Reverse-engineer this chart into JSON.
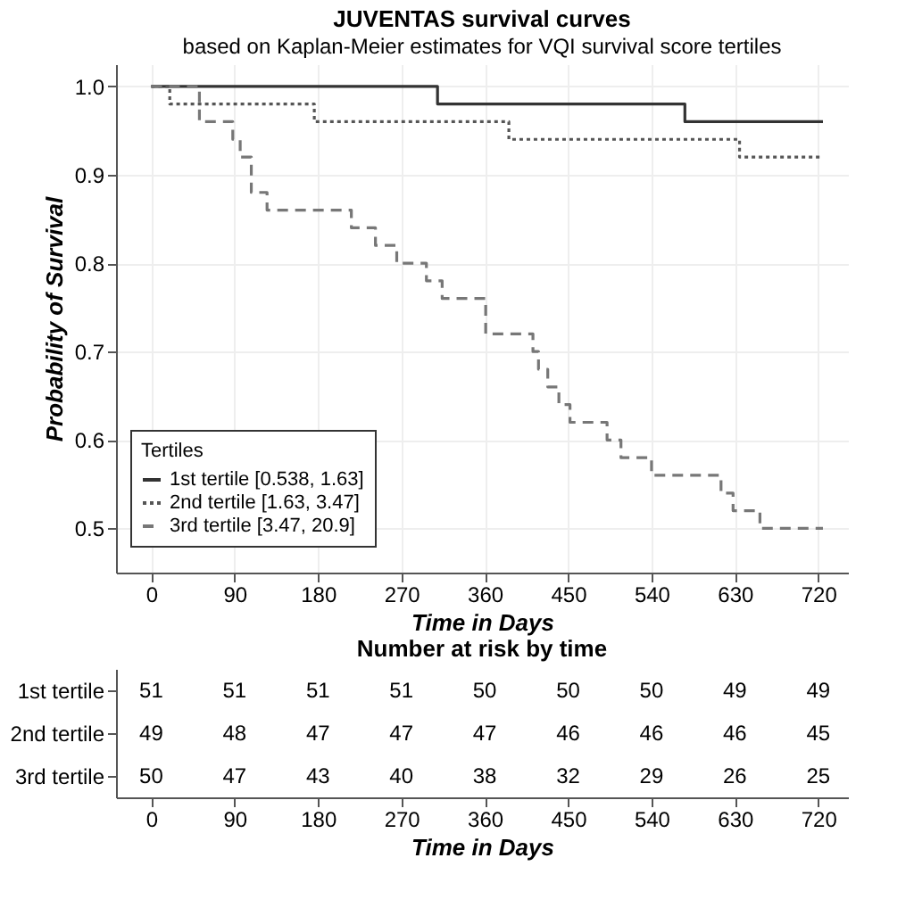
{
  "chart_data": [
    {
      "type": "step",
      "title": "JUVENTAS survival curves",
      "subtitle": "based on Kaplan-Meier estimates for VQI survival score tertiles",
      "xlabel": "Time in Days",
      "ylabel": "Probability of Survival",
      "legend_title": "Tertiles",
      "legend": "bottom left",
      "grid": true,
      "xlim": [
        -38,
        752
      ],
      "xticks": [
        0,
        90,
        180,
        270,
        360,
        450,
        540,
        630,
        720
      ],
      "ylim": [
        0.45,
        1.025
      ],
      "yticks": [
        0.5,
        0.6,
        0.7,
        0.8,
        0.9,
        {
          "value": 1.0,
          "label": "1.0"
        }
      ],
      "series": [
        {
          "name": "1st tertile [0.538, 1.63]",
          "color": "#333333",
          "line_style": "solid",
          "x": [
            0,
            309,
            576,
            725
          ],
          "values": [
            1.0,
            0.98,
            0.96,
            0.96
          ]
        },
        {
          "name": "2nd tertile [1.63, 3.47]",
          "color": "#555555",
          "line_style": "dotted",
          "x": [
            0,
            20,
            176,
            386,
            635,
            725
          ],
          "values": [
            1.0,
            0.98,
            0.96,
            0.94,
            0.92,
            0.92
          ]
        },
        {
          "name": "3rd tertile [3.47, 20.9]",
          "color": "#777777",
          "line_style": "dashed",
          "x": [
            0,
            52,
            88,
            96,
            108,
            125,
            216,
            242,
            265,
            297,
            314,
            361,
            412,
            418,
            428,
            440,
            452,
            492,
            507,
            540,
            615,
            628,
            657,
            725
          ],
          "values": [
            1.0,
            0.96,
            0.94,
            0.92,
            0.88,
            0.86,
            0.84,
            0.82,
            0.8,
            0.78,
            0.76,
            0.72,
            0.7,
            0.68,
            0.66,
            0.64,
            0.62,
            0.6,
            0.58,
            0.56,
            0.54,
            0.52,
            0.5,
            0.5
          ]
        }
      ]
    },
    {
      "type": "heatmap",
      "title": "Number at risk by time",
      "xlabel": "Time in Days",
      "data_labels": true,
      "x": [
        0,
        90,
        180,
        270,
        360,
        450,
        540,
        630,
        720
      ],
      "xlim": [
        -38,
        752
      ],
      "xticks": [
        0,
        90,
        180,
        270,
        360,
        450,
        540,
        630,
        720
      ],
      "y_categories": [
        "1st tertile",
        "2nd tertile",
        "3rd tertile"
      ],
      "cells": [
        [
          51,
          51,
          51,
          51,
          50,
          50,
          50,
          49,
          49
        ],
        [
          49,
          48,
          47,
          47,
          47,
          46,
          46,
          46,
          45
        ],
        [
          50,
          47,
          43,
          40,
          38,
          32,
          29,
          26,
          25
        ]
      ]
    }
  ]
}
